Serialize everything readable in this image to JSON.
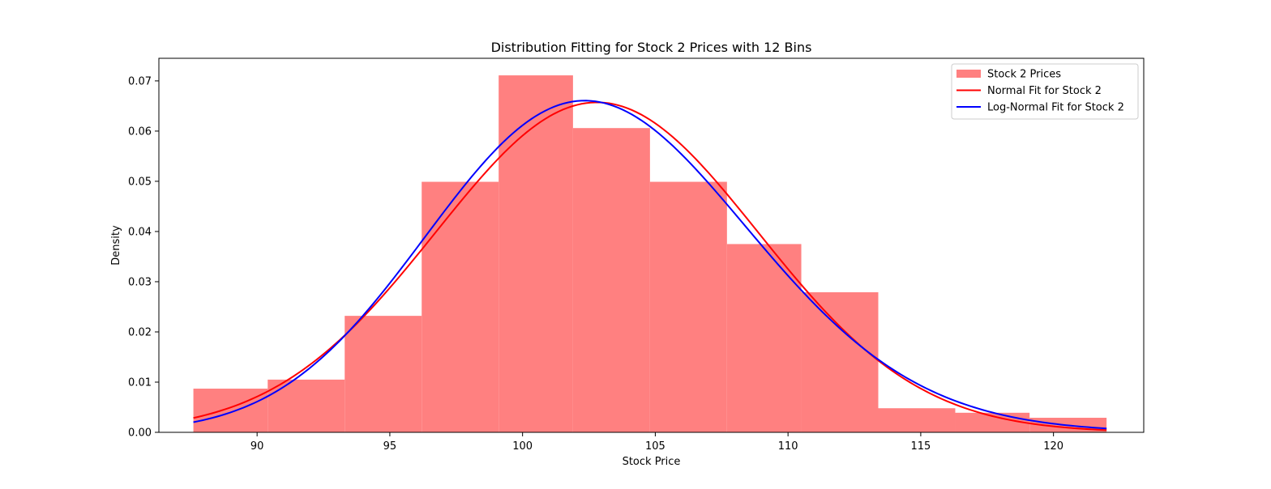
{
  "chart_data": {
    "type": "bar",
    "title": "Distribution Fitting for Stock 2 Prices with 12 Bins",
    "xlabel": "Stock Price",
    "ylabel": "Density",
    "xlim": [
      86.3,
      123.4
    ],
    "ylim": [
      0,
      0.0745
    ],
    "xticks": [
      {
        "value": 90,
        "label": "90"
      },
      {
        "value": 95,
        "label": "95"
      },
      {
        "value": 100,
        "label": "100"
      },
      {
        "value": 105,
        "label": "105"
      },
      {
        "value": 110,
        "label": "110"
      },
      {
        "value": 115,
        "label": "115"
      },
      {
        "value": 120,
        "label": "120"
      }
    ],
    "yticks": [
      {
        "value": 0.0,
        "label": "0.00"
      },
      {
        "value": 0.01,
        "label": "0.01"
      },
      {
        "value": 0.02,
        "label": "0.02"
      },
      {
        "value": 0.03,
        "label": "0.03"
      },
      {
        "value": 0.04,
        "label": "0.04"
      },
      {
        "value": 0.05,
        "label": "0.05"
      },
      {
        "value": 0.06,
        "label": "0.06"
      },
      {
        "value": 0.07,
        "label": "0.07"
      }
    ],
    "grid": false,
    "legend_position": "top-right",
    "bins": [
      {
        "x0": 87.6,
        "x1": 90.4,
        "density": 0.0087
      },
      {
        "x0": 90.4,
        "x1": 93.3,
        "density": 0.0105
      },
      {
        "x0": 93.3,
        "x1": 96.2,
        "density": 0.0232
      },
      {
        "x0": 96.2,
        "x1": 99.1,
        "density": 0.0499
      },
      {
        "x0": 99.1,
        "x1": 101.9,
        "density": 0.0711
      },
      {
        "x0": 101.9,
        "x1": 104.8,
        "density": 0.0606
      },
      {
        "x0": 104.8,
        "x1": 107.7,
        "density": 0.0499
      },
      {
        "x0": 107.7,
        "x1": 110.5,
        "density": 0.0375
      },
      {
        "x0": 110.5,
        "x1": 113.4,
        "density": 0.0279
      },
      {
        "x0": 113.4,
        "x1": 116.3,
        "density": 0.0048
      },
      {
        "x0": 116.3,
        "x1": 119.1,
        "density": 0.0039
      },
      {
        "x0": 119.1,
        "x1": 122.0,
        "density": 0.0029
      }
    ],
    "series": [
      {
        "name": "Stock 2 Prices",
        "kind": "histogram",
        "color": "#ff8080"
      },
      {
        "name": "Normal Fit for Stock 2",
        "kind": "normal",
        "color": "#ff0000",
        "mean": 102.8,
        "std": 6.07,
        "x_range": [
          87.6,
          122.0
        ]
      },
      {
        "name": "Log-Normal Fit for Stock 2",
        "kind": "lognormal",
        "color": "#0000ff",
        "mu": 4.6318,
        "sigma": 0.0589,
        "x_range": [
          87.6,
          122.0
        ]
      }
    ]
  }
}
